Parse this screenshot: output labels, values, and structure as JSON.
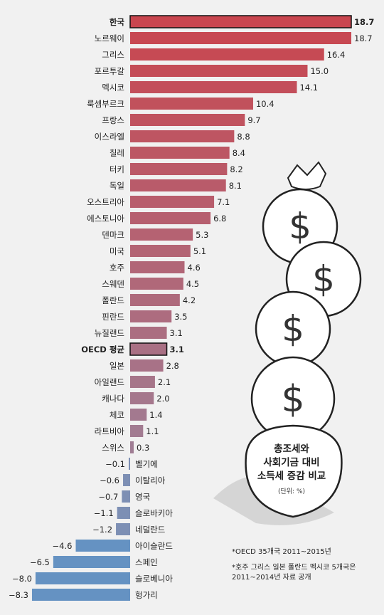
{
  "chart_data": {
    "type": "bar",
    "orientation": "horizontal",
    "categories": [
      "한국",
      "노르웨이",
      "그리스",
      "포르투갈",
      "멕시코",
      "룩셈부르크",
      "프랑스",
      "이스라엘",
      "칠레",
      "터키",
      "독일",
      "오스트리아",
      "에스토니아",
      "덴마크",
      "미국",
      "호주",
      "스웨덴",
      "폴란드",
      "핀란드",
      "뉴질랜드",
      "OECD 평균",
      "일본",
      "아일랜드",
      "캐나다",
      "체코",
      "라트비아",
      "스위스",
      "벨기에",
      "이탈리아",
      "영국",
      "슬로바키아",
      "네덜란드",
      "아이슬란드",
      "스페인",
      "슬로베니아",
      "헝가리"
    ],
    "values": [
      18.7,
      18.7,
      16.4,
      15.0,
      14.1,
      10.4,
      9.7,
      8.8,
      8.4,
      8.2,
      8.1,
      7.1,
      6.8,
      5.3,
      5.1,
      4.6,
      4.5,
      4.2,
      3.5,
      3.1,
      3.1,
      2.8,
      2.1,
      2.0,
      1.4,
      1.1,
      0.3,
      -0.1,
      -0.6,
      -0.7,
      -1.1,
      -1.2,
      -4.6,
      -6.5,
      -8.0,
      -8.3
    ],
    "value_labels": [
      "18.7",
      "18.7",
      "16.4",
      "15.0",
      "14.1",
      "10.4",
      "9.7",
      "8.8",
      "8.4",
      "8.2",
      "8.1",
      "7.1",
      "6.8",
      "5.3",
      "5.1",
      "4.6",
      "4.5",
      "4.2",
      "3.5",
      "3.1",
      "3.1",
      "2.8",
      "2.1",
      "2.0",
      "1.4",
      "1.1",
      "0.3",
      "−0.1",
      "−0.6",
      "−0.7",
      "−1.1",
      "−1.2",
      "−4.6",
      "−6.5",
      "−8.0",
      "−8.3"
    ],
    "highlight": [
      "한국",
      "OECD 평균"
    ],
    "colors": {
      "positive_top": "#c9464f",
      "positive_bottom": "#a07d94",
      "negative_small": "#7d8fb4",
      "negative_large": "#6592c2"
    },
    "xlabel": "",
    "ylabel": ""
  },
  "legend": {
    "lines": [
      "총조세와",
      "사회기금 대비",
      "소득세 증감 비교"
    ],
    "unit": "(단위: %)"
  },
  "notes": [
    "*OECD 35개국 2011~2015년",
    "*호주 그리스 일본 폴란드 멕시코 5개국은 2011~2014년 자료 공개"
  ]
}
